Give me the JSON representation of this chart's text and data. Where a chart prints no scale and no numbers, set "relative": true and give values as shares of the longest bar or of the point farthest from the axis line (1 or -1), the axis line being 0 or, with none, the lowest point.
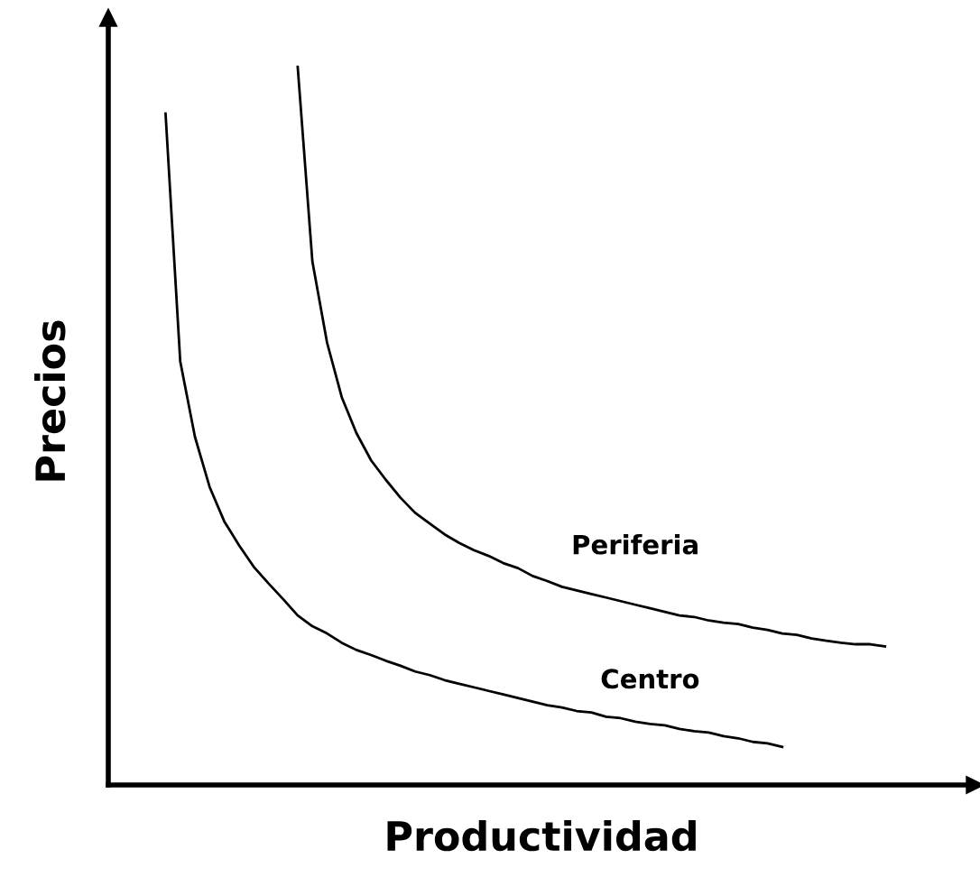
{
  "chart_data": {
    "type": "line",
    "relative": true,
    "xlabel": "Productividad",
    "ylabel": "Precios",
    "marker": "none",
    "line_style": "solid",
    "categories": [
      null,
      null,
      null,
      null,
      null,
      null,
      null,
      null,
      null,
      null,
      null,
      null,
      null,
      null,
      null,
      null,
      null,
      null,
      null,
      null,
      null,
      null,
      null,
      null,
      null,
      null,
      null,
      null,
      null,
      null,
      null,
      null,
      null,
      null,
      null,
      null,
      null,
      null,
      null,
      null,
      null,
      null,
      null,
      null,
      null,
      null,
      null,
      null,
      null,
      null
    ],
    "series": [
      {
        "name": "Periferia",
        "color": "#000000",
        "values": [
          null,
          null,
          null,
          null,
          null,
          null,
          null,
          null,
          null,
          1.0,
          0.729,
          0.616,
          0.54,
          0.49,
          0.452,
          0.425,
          0.4,
          0.379,
          0.364,
          0.349,
          0.337,
          0.327,
          0.319,
          0.309,
          0.302,
          0.291,
          0.284,
          0.276,
          0.271,
          0.266,
          0.261,
          0.256,
          0.251,
          0.246,
          0.241,
          0.236,
          0.234,
          0.229,
          0.226,
          0.224,
          0.219,
          0.216,
          0.211,
          0.209,
          0.204,
          0.201,
          0.198,
          0.196,
          0.196,
          0.193
        ]
      },
      {
        "name": "Centro",
        "color": "#000000",
        "values": [
          0.935,
          0.59,
          0.485,
          0.415,
          0.367,
          0.334,
          0.304,
          0.281,
          0.259,
          0.236,
          0.221,
          0.211,
          0.198,
          0.188,
          0.181,
          0.173,
          0.166,
          0.158,
          0.153,
          0.146,
          0.141,
          0.136,
          0.131,
          0.126,
          0.121,
          0.116,
          0.111,
          0.108,
          0.103,
          0.101,
          0.095,
          0.093,
          0.088,
          0.085,
          0.083,
          0.078,
          0.075,
          0.073,
          0.068,
          0.065,
          0.06,
          0.058,
          0.053,
          null,
          null,
          null,
          null,
          null,
          null,
          null
        ]
      }
    ]
  }
}
